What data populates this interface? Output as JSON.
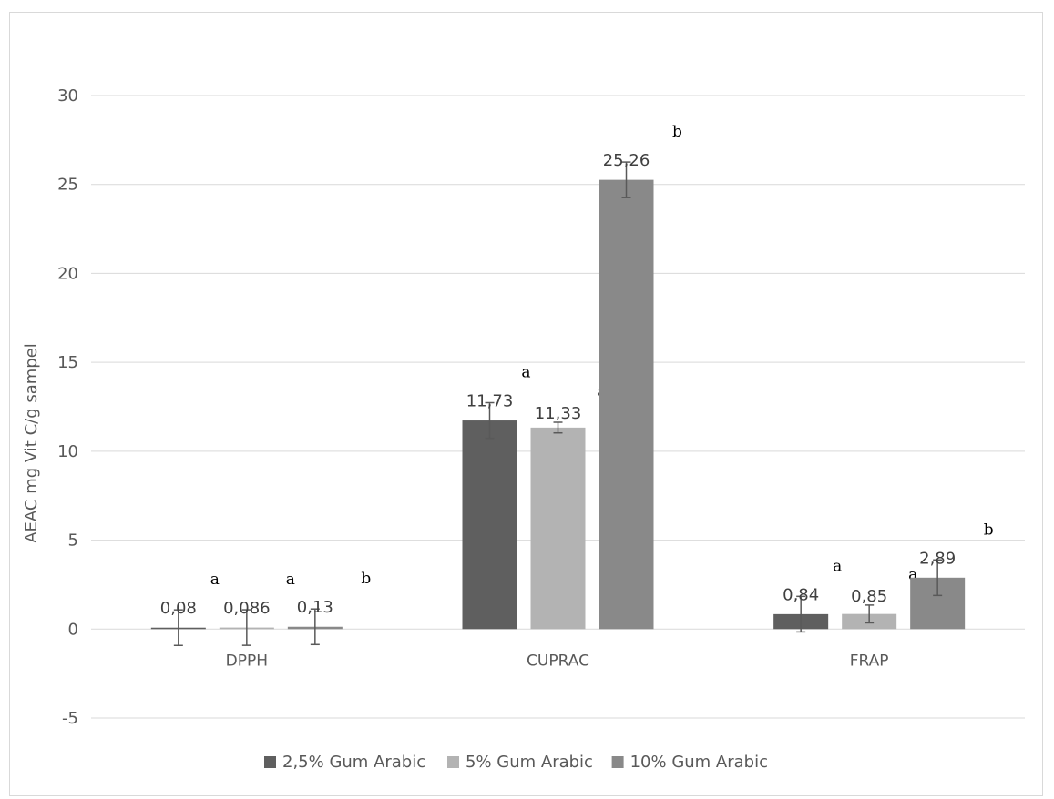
{
  "chart_data": {
    "type": "bar",
    "title": "",
    "xlabel": "",
    "ylabel": "AEAC mg Vit  C/g sampel",
    "ylim": [
      -5,
      30
    ],
    "yticks": [
      -5,
      0,
      5,
      10,
      15,
      20,
      25,
      30
    ],
    "ytick_labels": [
      "-5",
      "0",
      "5",
      "10",
      "15",
      "20",
      "25",
      "30"
    ],
    "grid": "horizontal",
    "legend_position": "bottom",
    "categories": [
      "DPPH",
      "CUPRAC",
      "FRAP"
    ],
    "series": [
      {
        "name": "2,5% Gum Arabic",
        "color": "#5f5f5f",
        "values": [
          0.08,
          11.73,
          0.84
        ],
        "labels": [
          "0,08",
          "11,73",
          "0,84"
        ],
        "error": [
          1,
          1,
          1
        ]
      },
      {
        "name": "5% Gum Arabic",
        "color": "#b3b3b3",
        "values": [
          0.086,
          11.33,
          0.85
        ],
        "labels": [
          "0,086",
          "11,33",
          "0,85"
        ],
        "error": [
          1,
          0.3,
          0.5
        ]
      },
      {
        "name": "10% Gum Arabic",
        "color": "#898989",
        "values": [
          0.13,
          25.26,
          2.89
        ],
        "labels": [
          "0,13",
          "25,26",
          "2,89"
        ],
        "error": [
          1,
          1,
          1
        ]
      }
    ],
    "significance_letters": [
      [
        "a",
        "a",
        "b"
      ],
      [
        "a",
        "a",
        "b"
      ],
      [
        "a",
        "a",
        "b"
      ]
    ]
  }
}
